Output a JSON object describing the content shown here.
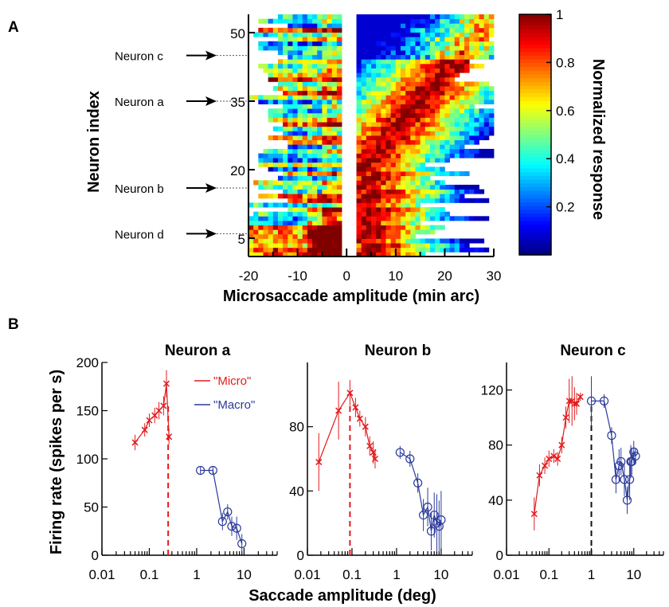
{
  "chart_data": [
    {
      "panel_label": "A",
      "type": "heatmap",
      "xlabel": "Microsaccade amplitude (min arc)",
      "ylabel": "Neuron index",
      "x_ticks": [
        "-20",
        "-10",
        "0",
        "10",
        "20",
        "30"
      ],
      "x_tick_values": [
        -20,
        -10,
        0,
        10,
        20,
        30
      ],
      "xlim": [
        -20,
        30
      ],
      "y_ticks": [
        "5",
        "20",
        "35",
        "50"
      ],
      "y_tick_values": [
        5,
        20,
        35,
        50
      ],
      "ylim": [
        1,
        54
      ],
      "blank_band": [
        -1.5,
        2.5
      ],
      "colorbar": {
        "label": "Normalized response",
        "ticks": [
          "0.2",
          "0.4",
          "0.6",
          "0.8",
          "1"
        ],
        "tick_values": [
          0.2,
          0.4,
          0.6,
          0.8,
          1
        ],
        "range": [
          0,
          1
        ],
        "colormap": "jet"
      },
      "annotations": [
        {
          "label": "Neuron c",
          "neuron_index": 45
        },
        {
          "label": "Neuron a",
          "neuron_index": 35
        },
        {
          "label": "Neuron b",
          "neuron_index": 16
        },
        {
          "label": "Neuron d",
          "neuron_index": 6
        }
      ],
      "preferred_amplitude_diagonal": {
        "from": [
          3,
          20
        ],
        "to": [
          29,
          53
        ]
      }
    },
    {
      "panel_label": "B",
      "type": "line",
      "title": "Neuron a",
      "xscale": "log",
      "xlim": [
        0.01,
        50
      ],
      "ylim": [
        0,
        200
      ],
      "yticks": [
        0,
        50,
        100,
        150,
        200
      ],
      "x_tick_labels": [
        "0.01",
        "0.1",
        "1",
        "10"
      ],
      "ylabel": "Firing rate (spikes per s)",
      "threshold": 0.25,
      "threshold_color": "#e31a1c",
      "legend": [
        "\"Micro\"",
        "\"Macro\""
      ],
      "series": [
        {
          "name": "\"Micro\"",
          "color": "#e31a1c",
          "marker": "x",
          "x": [
            0.05,
            0.08,
            0.1,
            0.13,
            0.16,
            0.2,
            0.23,
            0.26
          ],
          "y": [
            117,
            130,
            140,
            145,
            150,
            155,
            178,
            123
          ],
          "err": [
            8,
            7,
            7,
            8,
            9,
            10,
            14,
            8
          ]
        },
        {
          "name": "\"Macro\"",
          "color": "#2b3a9b",
          "marker": "o",
          "x": [
            1.2,
            2.2,
            3.5,
            4.5,
            5.5,
            7,
            9
          ],
          "y": [
            88,
            88,
            35,
            45,
            30,
            28,
            12
          ],
          "err": [
            4,
            4,
            9,
            8,
            10,
            12,
            10
          ]
        }
      ]
    },
    {
      "type": "line",
      "title": "Neuron b",
      "xscale": "log",
      "xlim": [
        0.01,
        50
      ],
      "ylim": [
        0,
        120
      ],
      "yticks": [
        0,
        40,
        80
      ],
      "x_tick_labels": [
        "0.01",
        "0.1",
        "1",
        "10"
      ],
      "threshold": 0.09,
      "threshold_color": "#e31a1c",
      "series": [
        {
          "name": "\"Micro\"",
          "color": "#e31a1c",
          "marker": "x",
          "x": [
            0.018,
            0.05,
            0.09,
            0.12,
            0.15,
            0.2,
            0.25,
            0.3,
            0.33
          ],
          "y": [
            58,
            90,
            101,
            92,
            85,
            80,
            68,
            64,
            60
          ],
          "err": [
            18,
            18,
            8,
            6,
            5,
            6,
            6,
            7,
            6
          ]
        },
        {
          "name": "\"Macro\"",
          "color": "#2b3a9b",
          "marker": "o",
          "x": [
            1.2,
            2,
            3,
            4,
            5,
            6,
            7,
            8,
            9,
            10
          ],
          "y": [
            64,
            60,
            45,
            25,
            30,
            15,
            25,
            20,
            18,
            22
          ],
          "err": [
            4,
            5,
            6,
            10,
            12,
            12,
            14,
            18,
            16,
            18
          ]
        }
      ]
    },
    {
      "type": "line",
      "title": "Neuron c",
      "xscale": "log",
      "xlim": [
        0.01,
        50
      ],
      "ylim": [
        0,
        140
      ],
      "yticks": [
        0,
        40,
        80,
        120
      ],
      "x_tick_labels": [
        "0.01",
        "0.1",
        "1",
        "10"
      ],
      "threshold": 1,
      "threshold_color": "#111111",
      "series": [
        {
          "name": "\"Micro\"",
          "color": "#e31a1c",
          "marker": "x",
          "x": [
            0.045,
            0.06,
            0.08,
            0.1,
            0.13,
            0.16,
            0.2,
            0.25,
            0.3,
            0.35,
            0.4,
            0.45,
            0.55
          ],
          "y": [
            30,
            58,
            65,
            70,
            72,
            70,
            80,
            100,
            112,
            112,
            110,
            110,
            115
          ],
          "err": [
            12,
            8,
            6,
            6,
            5,
            5,
            6,
            8,
            16,
            18,
            12,
            8,
            3
          ]
        },
        {
          "name": "\"Macro\"",
          "color": "#2b3a9b",
          "marker": "o",
          "x": [
            1,
            2,
            3,
            3.8,
            4.5,
            5,
            6,
            7,
            8,
            8.5,
            9,
            10,
            11
          ],
          "y": [
            112,
            112,
            87,
            55,
            65,
            68,
            55,
            40,
            55,
            68,
            68,
            75,
            72
          ],
          "err": [
            18,
            5,
            6,
            10,
            12,
            10,
            12,
            10,
            15,
            12,
            10,
            8,
            6
          ]
        }
      ]
    }
  ],
  "panel_b_xlabel": "Saccade amplitude (deg)"
}
